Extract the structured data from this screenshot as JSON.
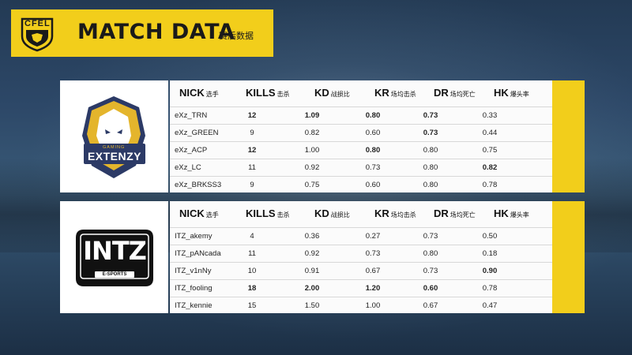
{
  "header": {
    "title": "MATCH DATA",
    "subtitle": "赛后数据",
    "badge_text": "CFEL"
  },
  "columns": [
    {
      "label": "NICK",
      "sub": "选手"
    },
    {
      "label": "KILLS",
      "sub": "击杀"
    },
    {
      "label": "KD",
      "sub": "战损比"
    },
    {
      "label": "KR",
      "sub": "场均击杀"
    },
    {
      "label": "DR",
      "sub": "场均死亡"
    },
    {
      "label": "HK",
      "sub": "爆头率"
    }
  ],
  "teams": [
    {
      "logo_text": "EXTENZY",
      "logo_sub": "GAMING",
      "players": [
        {
          "nick": "eXz_TRN",
          "kills": "12",
          "kd": "1.09",
          "kr": "0.80",
          "dr": "0.73",
          "hk": "0.33"
        },
        {
          "nick": "eXz_GREEN",
          "kills": "9",
          "kd": "0.82",
          "kr": "0.60",
          "dr": "0.73",
          "hk": "0.44"
        },
        {
          "nick": "eXz_ACP",
          "kills": "12",
          "kd": "1.00",
          "kr": "0.80",
          "dr": "0.80",
          "hk": "0.75"
        },
        {
          "nick": "eXz_LC",
          "kills": "11",
          "kd": "0.92",
          "kr": "0.73",
          "dr": "0.80",
          "hk": "0.82"
        },
        {
          "nick": "eXz_BRKSS3",
          "kills": "9",
          "kd": "0.75",
          "kr": "0.60",
          "dr": "0.80",
          "hk": "0.78"
        }
      ]
    },
    {
      "logo_text": "INTZ",
      "logo_sub": "E-SPORTS",
      "players": [
        {
          "nick": "ITZ_akemy",
          "kills": "4",
          "kd": "0.36",
          "kr": "0.27",
          "dr": "0.73",
          "hk": "0.50"
        },
        {
          "nick": "ITZ_pANcada",
          "kills": "11",
          "kd": "0.92",
          "kr": "0.73",
          "dr": "0.80",
          "hk": "0.18"
        },
        {
          "nick": "ITZ_v1nNy",
          "kills": "10",
          "kd": "0.91",
          "kr": "0.67",
          "dr": "0.73",
          "hk": "0.90"
        },
        {
          "nick": "ITZ_fooling",
          "kills": "18",
          "kd": "2.00",
          "kr": "1.20",
          "dr": "0.60",
          "hk": "0.78"
        },
        {
          "nick": "ITZ_kennie",
          "kills": "15",
          "kd": "1.50",
          "kr": "1.00",
          "dr": "0.67",
          "hk": "0.47"
        }
      ]
    }
  ],
  "colors": {
    "accent": "#f2ce1b",
    "header_text": "#1a1a1a",
    "team1_logo": "#2c3a66",
    "team1_gold": "#e4b52c",
    "team2_logo": "#111111"
  }
}
